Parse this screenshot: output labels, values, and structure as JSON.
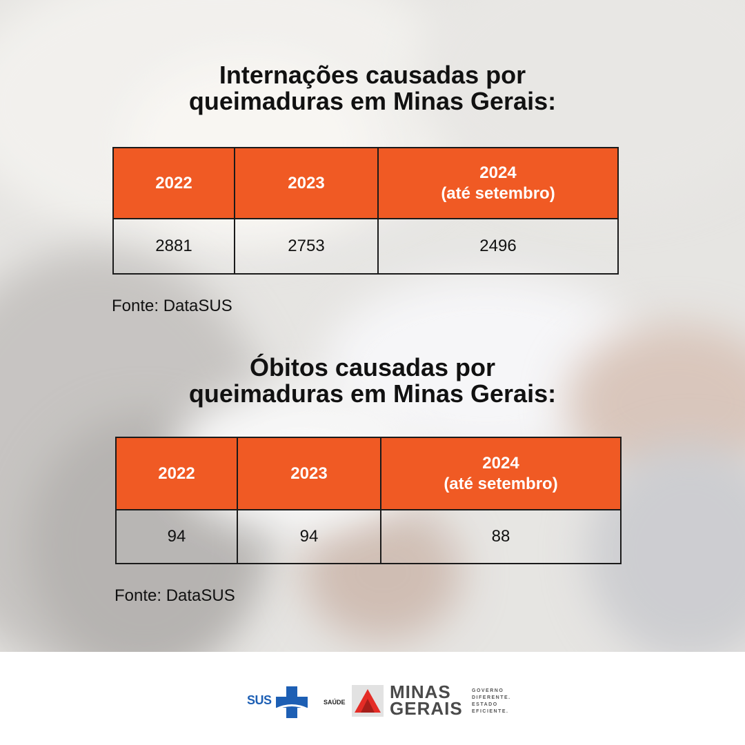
{
  "section1": {
    "title_line1": "Internações causadas por",
    "title_line2": "queimaduras em Minas Gerais:",
    "headers": [
      {
        "main": "2022",
        "sub": ""
      },
      {
        "main": "2023",
        "sub": ""
      },
      {
        "main": "2024",
        "sub": "(até setembro)"
      }
    ],
    "values": [
      "2881",
      "2753",
      "2496"
    ],
    "source": "Fonte: DataSUS"
  },
  "section2": {
    "title_line1": "Óbitos causadas por",
    "title_line2": "queimaduras em Minas Gerais:",
    "headers": [
      {
        "main": "2022",
        "sub": ""
      },
      {
        "main": "2023",
        "sub": ""
      },
      {
        "main": "2024",
        "sub": "(até setembro)"
      }
    ],
    "values": [
      "94",
      "94",
      "88"
    ],
    "source": "Fonte: DataSUS"
  },
  "footer": {
    "sus_label": "SUS",
    "saude_label": "SAÚDE",
    "minas_line1": "MINAS",
    "minas_line2": "GERAIS",
    "slogan_line1": "GOVERNO",
    "slogan_line2": "DIFERENTE.",
    "slogan_line3": "ESTADO",
    "slogan_line4": "EFICIENTE."
  },
  "colors": {
    "accent": "#f05a24",
    "sus_blue": "#1d5fb4",
    "mg_red": "#e42c26"
  }
}
